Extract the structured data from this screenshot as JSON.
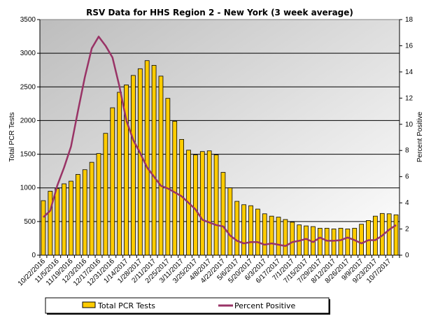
{
  "chart_data": {
    "type": "bar+line",
    "title": "RSV Data for HHS Region 2 - New York (3 week average)",
    "ylabel": "Total PCR Tests",
    "y2label": "Percent Positive",
    "ylim": [
      0,
      3500
    ],
    "yticks": [
      0,
      500,
      1000,
      1500,
      2000,
      2500,
      3000,
      3500
    ],
    "y2lim": [
      0,
      18
    ],
    "y2ticks": [
      0,
      2,
      4,
      6,
      8,
      10,
      12,
      14,
      16,
      18
    ],
    "grid": true,
    "legend_position": "bottom",
    "x_tick_labels": [
      "10/22/2016",
      "11/5/2016",
      "11/19/2016",
      "12/3/2016",
      "12/17/2016",
      "12/31/2016",
      "1/14/2017",
      "1/28/2017",
      "2/11/2017",
      "2/25/2017",
      "3/11/2017",
      "3/25/2017",
      "4/8/2017",
      "4/22/2017",
      "5/6/2017",
      "5/20/2017",
      "6/3/2017",
      "6/17/2017",
      "7/1/2017",
      "7/15/2017",
      "7/29/2017",
      "8/12/2017",
      "8/26/2017",
      "9/9/2017",
      "9/23/2017",
      "10/7/2017"
    ],
    "series": [
      {
        "name": "Total PCR Tests",
        "type": "bar",
        "axis": "left",
        "color": "#FFCC00",
        "values": [
          810,
          950,
          990,
          1060,
          1100,
          1200,
          1270,
          1380,
          1510,
          1810,
          2190,
          2420,
          2530,
          2670,
          2770,
          2890,
          2820,
          2660,
          2330,
          1990,
          1720,
          1560,
          1490,
          1540,
          1550,
          1490,
          1230,
          1000,
          800,
          750,
          735,
          685,
          615,
          580,
          565,
          530,
          490,
          450,
          435,
          425,
          400,
          400,
          390,
          400,
          390,
          400,
          460,
          515,
          580,
          620,
          615,
          600
        ]
      },
      {
        "name": "Percent Positive",
        "type": "line",
        "axis": "right",
        "color": "#993366",
        "values": [
          2.9,
          3.4,
          5.3,
          6.7,
          8.3,
          11.0,
          13.6,
          15.8,
          16.7,
          16.0,
          15.1,
          12.9,
          10.3,
          8.8,
          7.8,
          6.7,
          6.0,
          5.3,
          5.1,
          4.8,
          4.5,
          4.0,
          3.5,
          2.7,
          2.5,
          2.3,
          2.2,
          1.5,
          1.1,
          0.9,
          1.0,
          1.0,
          0.8,
          0.9,
          0.8,
          0.7,
          1.0,
          1.1,
          1.25,
          1.0,
          1.35,
          1.1,
          1.1,
          1.15,
          1.35,
          1.15,
          0.9,
          1.15,
          1.15,
          1.5,
          1.95,
          2.3
        ]
      }
    ]
  }
}
